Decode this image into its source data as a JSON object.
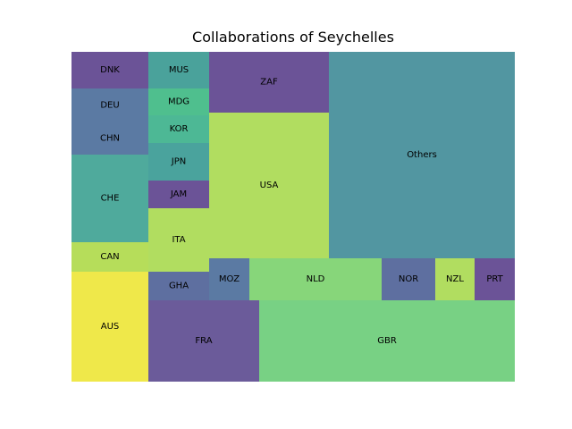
{
  "chart_data": {
    "type": "treemap",
    "title": "Collaborations of Seychelles",
    "tiles": [
      {
        "label": "DNK",
        "color": "#6b5397"
      },
      {
        "label": "DEU",
        "color": "#5b7aa3"
      },
      {
        "label": "CHN",
        "color": "#5b7aa3"
      },
      {
        "label": "CHE",
        "color": "#4faa9c"
      },
      {
        "label": "CAN",
        "color": "#b6dd5a"
      },
      {
        "label": "AUS",
        "color": "#efe84a"
      },
      {
        "label": "MUS",
        "color": "#4aa29b"
      },
      {
        "label": "MDG",
        "color": "#4fbf8e"
      },
      {
        "label": "KOR",
        "color": "#4db895"
      },
      {
        "label": "JPN",
        "color": "#4aa39d"
      },
      {
        "label": "JAM",
        "color": "#6b5397"
      },
      {
        "label": "ITA",
        "color": "#b1dd60"
      },
      {
        "label": "GHA",
        "color": "#5e6fa0"
      },
      {
        "label": "FRA",
        "color": "#6b5b9a"
      },
      {
        "label": "ZAF",
        "color": "#6b5397"
      },
      {
        "label": "USA",
        "color": "#b1dd60"
      },
      {
        "label": "MOZ",
        "color": "#5b7aa3"
      },
      {
        "label": "NLD",
        "color": "#87d67a"
      },
      {
        "label": "GBR",
        "color": "#78d184"
      },
      {
        "label": "Others",
        "color": "#5296a1"
      },
      {
        "label": "NOR",
        "color": "#5e6fa0"
      },
      {
        "label": "NZL",
        "color": "#b1dd60"
      },
      {
        "label": "PRT",
        "color": "#6b5397"
      }
    ]
  }
}
